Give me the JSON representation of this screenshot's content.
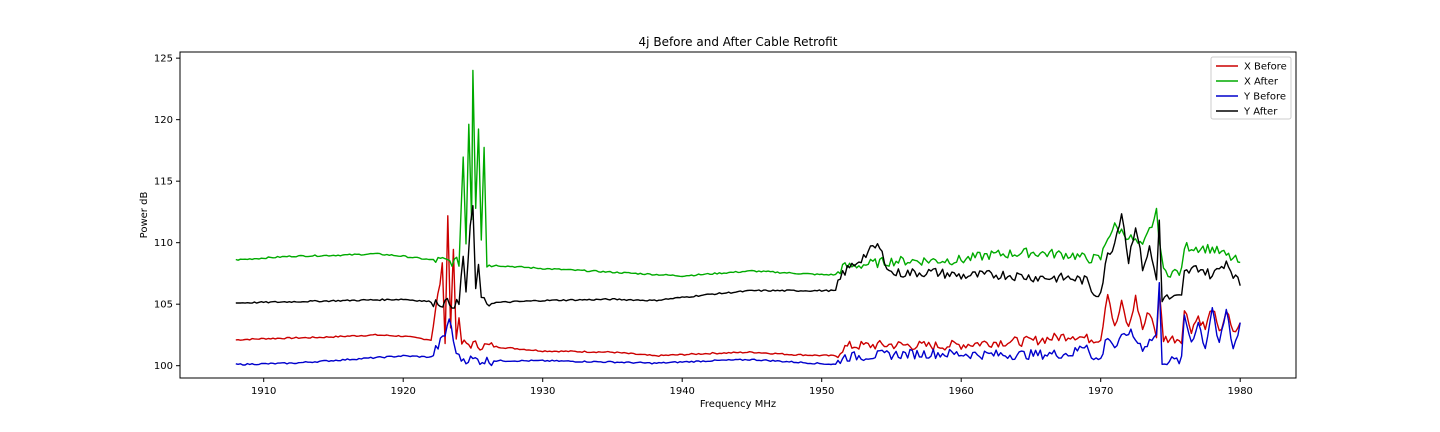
{
  "chart_data": {
    "type": "line",
    "title": "4j Before and After Cable Retrofit",
    "xlabel": "Frequency MHz",
    "ylabel": "Power dB",
    "xlim": [
      1904,
      1984
    ],
    "ylim": [
      99,
      125.5
    ],
    "xticks": [
      1910,
      1920,
      1930,
      1940,
      1950,
      1960,
      1970,
      1980
    ],
    "yticks": [
      100,
      105,
      110,
      115,
      120,
      125
    ],
    "grid": false,
    "legend_position": "top-right",
    "series": [
      {
        "name": "X Before",
        "color": "#cc0000",
        "points": [
          [
            1908,
            102.1
          ],
          [
            1910,
            102.2
          ],
          [
            1914,
            102.3
          ],
          [
            1918,
            102.5
          ],
          [
            1920,
            102.4
          ],
          [
            1922,
            102.1
          ],
          [
            1922.8,
            108
          ],
          [
            1923.0,
            102.2
          ],
          [
            1923.2,
            112.3
          ],
          [
            1923.4,
            103
          ],
          [
            1923.6,
            109.5
          ],
          [
            1923.8,
            102.5
          ],
          [
            1924,
            103.5
          ],
          [
            1924.2,
            101.8
          ],
          [
            1926,
            101.6
          ],
          [
            1930,
            101.2
          ],
          [
            1935,
            101.1
          ],
          [
            1938,
            100.8
          ],
          [
            1942,
            101.0
          ],
          [
            1945,
            101.1
          ],
          [
            1948,
            100.9
          ],
          [
            1951,
            100.8
          ],
          [
            1951.5,
            101.4
          ],
          [
            1952,
            101.6
          ],
          [
            1955,
            101.7
          ],
          [
            1958,
            101.6
          ],
          [
            1960,
            101.7
          ],
          [
            1962,
            101.9
          ],
          [
            1965,
            102.0
          ],
          [
            1968,
            102.5
          ],
          [
            1969,
            102.2
          ],
          [
            1970,
            102.2
          ],
          [
            1970.5,
            106.1
          ],
          [
            1971,
            103
          ],
          [
            1971.5,
            105
          ],
          [
            1972,
            103
          ],
          [
            1972.5,
            105.5
          ],
          [
            1973,
            103
          ],
          [
            1973.5,
            104.5
          ],
          [
            1974,
            102.5
          ],
          [
            1974.2,
            105.9
          ],
          [
            1974.5,
            102.2
          ],
          [
            1975.8,
            102.2
          ],
          [
            1976,
            104.5
          ],
          [
            1976.5,
            103
          ],
          [
            1977,
            104
          ],
          [
            1977.5,
            103
          ],
          [
            1978,
            104.8
          ],
          [
            1978.5,
            102.5
          ],
          [
            1979,
            104.5
          ],
          [
            1979.5,
            102.5
          ],
          [
            1980,
            103.5
          ]
        ]
      },
      {
        "name": "X After",
        "color": "#00aa00",
        "points": [
          [
            1908,
            108.6
          ],
          [
            1912,
            108.9
          ],
          [
            1916,
            109.0
          ],
          [
            1918,
            109.1
          ],
          [
            1920,
            108.9
          ],
          [
            1922,
            108.6
          ],
          [
            1924,
            108.4
          ],
          [
            1924.3,
            117
          ],
          [
            1924.5,
            110
          ],
          [
            1924.7,
            119.9
          ],
          [
            1924.9,
            112
          ],
          [
            1925.0,
            124.2
          ],
          [
            1925.2,
            113
          ],
          [
            1925.4,
            119.5
          ],
          [
            1925.6,
            110.5
          ],
          [
            1925.8,
            118
          ],
          [
            1926,
            108.2
          ],
          [
            1930,
            107.9
          ],
          [
            1935,
            107.6
          ],
          [
            1940,
            107.3
          ],
          [
            1945,
            107.7
          ],
          [
            1950,
            107.4
          ],
          [
            1951,
            107.4
          ],
          [
            1951.5,
            108
          ],
          [
            1955,
            108.5
          ],
          [
            1960,
            108.6
          ],
          [
            1962,
            109
          ],
          [
            1965,
            109.2
          ],
          [
            1968,
            109
          ],
          [
            1969,
            108.7
          ],
          [
            1970,
            108.7
          ],
          [
            1970.5,
            110.5
          ],
          [
            1971,
            111.3
          ],
          [
            1972,
            110.5
          ],
          [
            1973,
            109.6
          ],
          [
            1974,
            112.4
          ],
          [
            1974.5,
            107.6
          ],
          [
            1975.8,
            107.6
          ],
          [
            1976,
            109.7
          ],
          [
            1978,
            109.5
          ],
          [
            1980,
            108.4
          ]
        ]
      },
      {
        "name": "Y Before",
        "color": "#0000cc",
        "points": [
          [
            1908,
            100.1
          ],
          [
            1912,
            100.2
          ],
          [
            1916,
            100.5
          ],
          [
            1920,
            100.8
          ],
          [
            1922,
            100.7
          ],
          [
            1923,
            102.5
          ],
          [
            1923.3,
            103.9
          ],
          [
            1923.6,
            102
          ],
          [
            1924,
            100.6
          ],
          [
            1926,
            100.4
          ],
          [
            1930,
            100.4
          ],
          [
            1935,
            100.3
          ],
          [
            1938,
            100.2
          ],
          [
            1942,
            100.4
          ],
          [
            1945,
            100.5
          ],
          [
            1948,
            100.3
          ],
          [
            1951,
            100.1
          ],
          [
            1951.5,
            100.7
          ],
          [
            1955,
            100.9
          ],
          [
            1958,
            101.0
          ],
          [
            1962,
            100.9
          ],
          [
            1965,
            100.9
          ],
          [
            1968,
            101.0
          ],
          [
            1969,
            101.8
          ],
          [
            1969.5,
            100.5
          ],
          [
            1970,
            100.5
          ],
          [
            1970.5,
            102.5
          ],
          [
            1971,
            101.5
          ],
          [
            1972,
            102.8
          ],
          [
            1973,
            101.5
          ],
          [
            1974,
            102.5
          ],
          [
            1974.2,
            106.5
          ],
          [
            1974.4,
            100.4
          ],
          [
            1975.8,
            100.4
          ],
          [
            1976,
            104
          ],
          [
            1976.5,
            102
          ],
          [
            1977,
            103.5
          ],
          [
            1977.5,
            101.5
          ],
          [
            1978,
            104.8
          ],
          [
            1978.5,
            101.5
          ],
          [
            1979,
            104.5
          ],
          [
            1979.5,
            101.3
          ],
          [
            1980,
            103.5
          ]
        ]
      },
      {
        "name": "Y After",
        "color": "#000000",
        "points": [
          [
            1908,
            105.1
          ],
          [
            1912,
            105.2
          ],
          [
            1916,
            105.3
          ],
          [
            1920,
            105.4
          ],
          [
            1922,
            105.2
          ],
          [
            1924,
            105.0
          ],
          [
            1924.3,
            109
          ],
          [
            1924.5,
            106
          ],
          [
            1924.8,
            111
          ],
          [
            1925,
            113
          ],
          [
            1925.2,
            106
          ],
          [
            1925.4,
            108.5
          ],
          [
            1925.6,
            105.2
          ],
          [
            1926,
            105.1
          ],
          [
            1930,
            105.3
          ],
          [
            1935,
            105.4
          ],
          [
            1938,
            105.3
          ],
          [
            1942,
            105.8
          ],
          [
            1945,
            106.1
          ],
          [
            1950,
            106.1
          ],
          [
            1951,
            106.1
          ],
          [
            1951.5,
            107.5
          ],
          [
            1954,
            109.8
          ],
          [
            1955,
            107.5
          ],
          [
            1958,
            107.6
          ],
          [
            1960,
            107.3
          ],
          [
            1963,
            107.4
          ],
          [
            1965,
            107.2
          ],
          [
            1968,
            107.1
          ],
          [
            1969,
            106.9
          ],
          [
            1969.5,
            105.9
          ],
          [
            1970,
            106
          ],
          [
            1970.5,
            109
          ],
          [
            1971,
            110
          ],
          [
            1971.5,
            112.6
          ],
          [
            1972,
            108.5
          ],
          [
            1972.5,
            111.5
          ],
          [
            1973,
            108
          ],
          [
            1973.5,
            109.5
          ],
          [
            1974,
            107
          ],
          [
            1974.2,
            111.8
          ],
          [
            1974.4,
            105.5
          ],
          [
            1975.8,
            105.5
          ],
          [
            1976,
            107.5
          ],
          [
            1977,
            108
          ],
          [
            1978,
            107.3
          ],
          [
            1979,
            108.5
          ],
          [
            1980,
            106.5
          ]
        ]
      }
    ]
  }
}
